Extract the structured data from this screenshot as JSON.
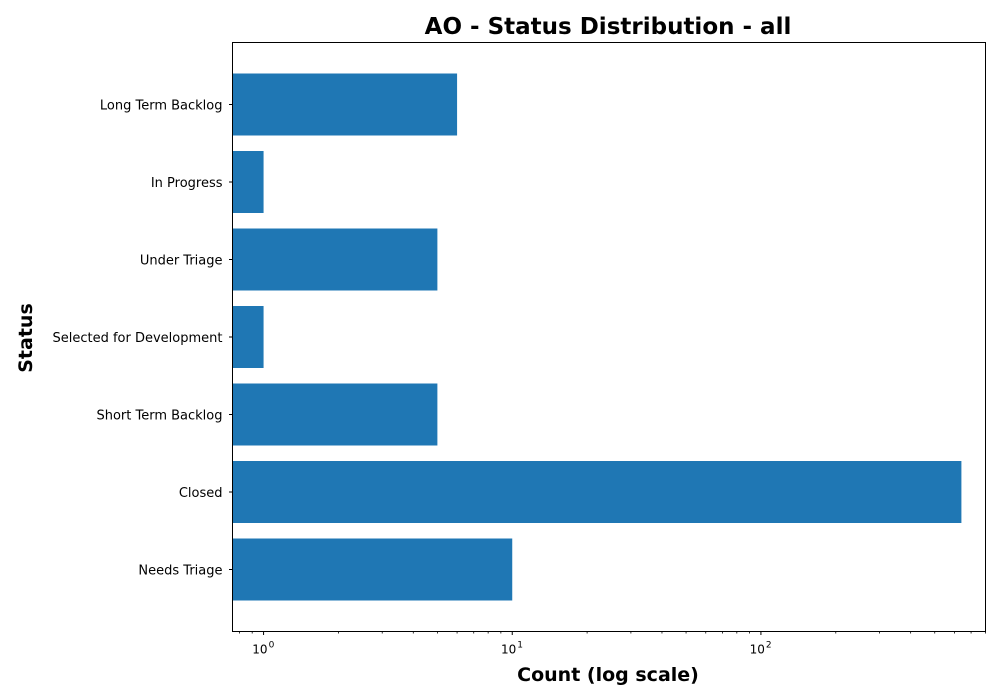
{
  "chart_data": {
    "type": "bar",
    "orientation": "horizontal",
    "title": "AO - Status Distribution - all",
    "xlabel": "Count (log scale)",
    "ylabel": "Status",
    "x_scale": "log",
    "xlim": [
      0.75,
      800
    ],
    "x_major_ticks": [
      {
        "base": "10",
        "exp": "0",
        "value": 1
      },
      {
        "base": "10",
        "exp": "1",
        "value": 10
      },
      {
        "base": "10",
        "exp": "2",
        "value": 100
      }
    ],
    "categories": [
      "Long Term Backlog",
      "In Progress",
      "Under Triage",
      "Selected for Development",
      "Short Term Backlog",
      "Closed",
      "Needs Triage"
    ],
    "values": [
      6,
      1,
      5,
      1,
      5,
      640,
      10
    ],
    "bar_color": "#1f77b4",
    "grid": false,
    "legend": "none"
  }
}
